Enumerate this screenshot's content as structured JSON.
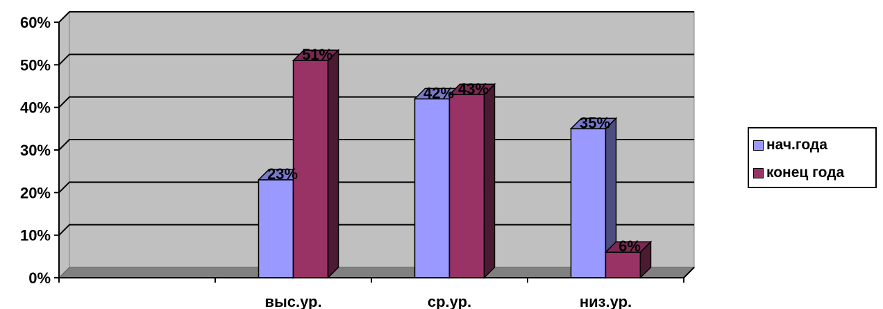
{
  "chart_data": {
    "type": "bar",
    "categories": [
      "",
      "выс.ур.",
      "ср.ур.",
      "низ.ур."
    ],
    "series": [
      {
        "name": "нач.года",
        "values": [
          null,
          23,
          42,
          35
        ],
        "labels": [
          "",
          "23%",
          "42%",
          "35%"
        ],
        "color": "#9999FF",
        "side_color": "#4D4D80",
        "top_color": "#7A7ACC"
      },
      {
        "name": "конец года",
        "values": [
          null,
          51,
          43,
          6
        ],
        "labels": [
          "",
          "51%",
          "43%",
          "6%"
        ],
        "color": "#993366",
        "side_color": "#4D1A33",
        "top_color": "#7A2952"
      }
    ],
    "y_ticks": [
      "0%",
      "10%",
      "20%",
      "30%",
      "40%",
      "50%",
      "60%"
    ],
    "ylim": [
      0,
      60
    ],
    "grid": true,
    "legend_position": "right",
    "wall_color": "#C0C0C0",
    "floor_color": "#808080"
  }
}
